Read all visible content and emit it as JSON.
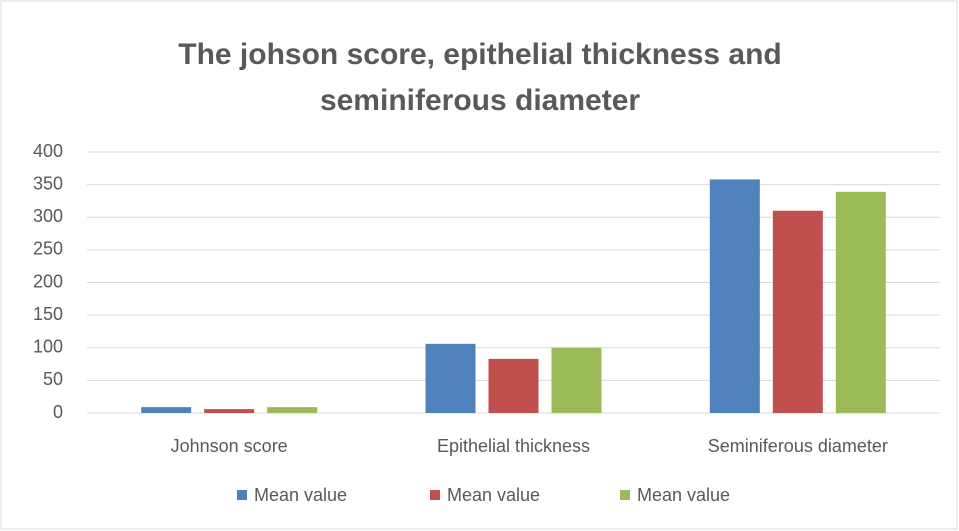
{
  "chart_data": {
    "type": "bar",
    "title": "The johson score, epithelial thickness and seminiferous diameter",
    "categories": [
      "Johnson score",
      "Epithelial thickness",
      "Seminiferous diameter"
    ],
    "series": [
      {
        "name": "Mean value",
        "color": "#4f81bd",
        "values": [
          9,
          106,
          358
        ]
      },
      {
        "name": "Mean value",
        "color": "#c0504d",
        "values": [
          6,
          83,
          310
        ]
      },
      {
        "name": "Mean value",
        "color": "#9bbb59",
        "values": [
          9,
          100,
          339
        ]
      }
    ],
    "ylim": [
      0,
      400
    ],
    "yticks": [
      0,
      50,
      100,
      150,
      200,
      250,
      300,
      350,
      400
    ],
    "grid": true,
    "legend": "bottom"
  }
}
